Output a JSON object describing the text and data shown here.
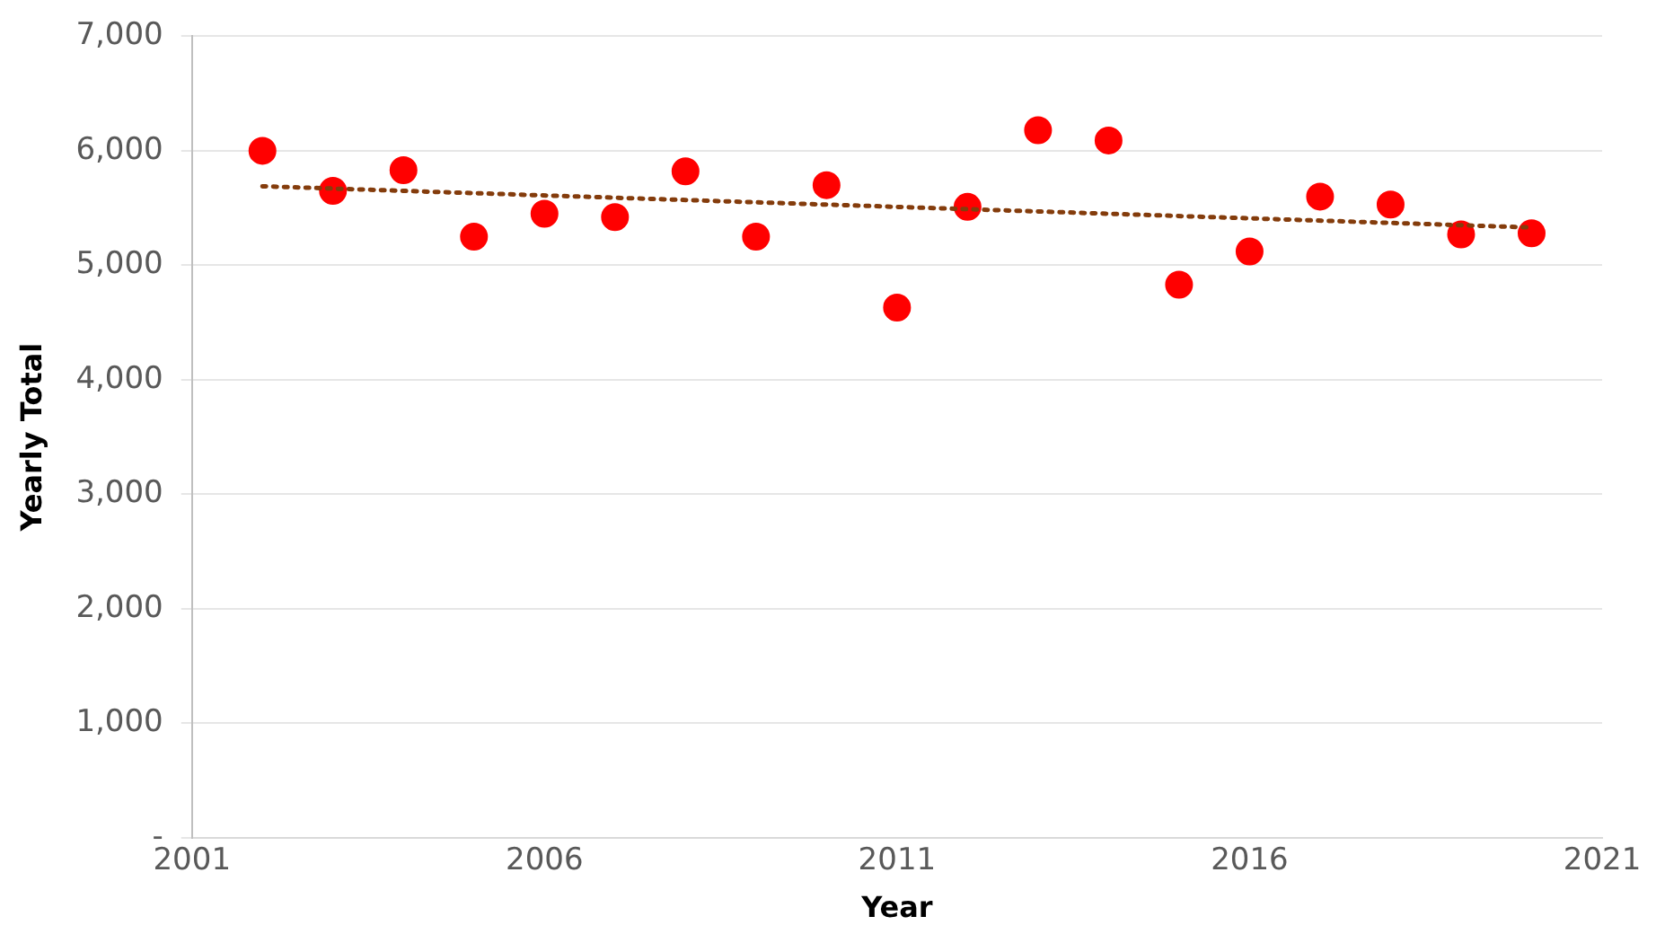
{
  "chart_data": {
    "type": "scatter",
    "xlabel": "Year",
    "ylabel": "Yearly Total",
    "x": [
      2002,
      2003,
      2004,
      2005,
      2006,
      2007,
      2008,
      2009,
      2010,
      2011,
      2012,
      2013,
      2014,
      2015,
      2016,
      2017,
      2018,
      2019,
      2020
    ],
    "series": [
      {
        "color": "#ff0000",
        "marker": "circle",
        "values": [
          6000,
          5650,
          5830,
          5250,
          5450,
          5420,
          5820,
          5250,
          5700,
          4630,
          5510,
          6180,
          6090,
          4830,
          5120,
          5600,
          5530,
          5270,
          5280
        ]
      },
      {
        "type": "line",
        "x": [
          2002,
          2020
        ],
        "color": "#843c0c",
        "marker": "none",
        "line_style": "dotted",
        "values": [
          5690,
          5330
        ]
      }
    ],
    "xlim": [
      2001,
      2021
    ],
    "xticks": [
      2001,
      2006,
      2011,
      2016,
      2021
    ],
    "ylim": [
      0,
      7000
    ],
    "yticks": [
      {
        "value": 0,
        "label": "-"
      },
      {
        "value": 1000,
        "label": "1,000"
      },
      {
        "value": 2000,
        "label": "2,000"
      },
      {
        "value": 3000,
        "label": "3,000"
      },
      {
        "value": 4000,
        "label": "4,000"
      },
      {
        "value": 5000,
        "label": "5,000"
      },
      {
        "value": 6000,
        "label": "6,000"
      },
      {
        "value": 7000,
        "label": "7,000"
      }
    ],
    "grid": "y",
    "legend": false
  }
}
